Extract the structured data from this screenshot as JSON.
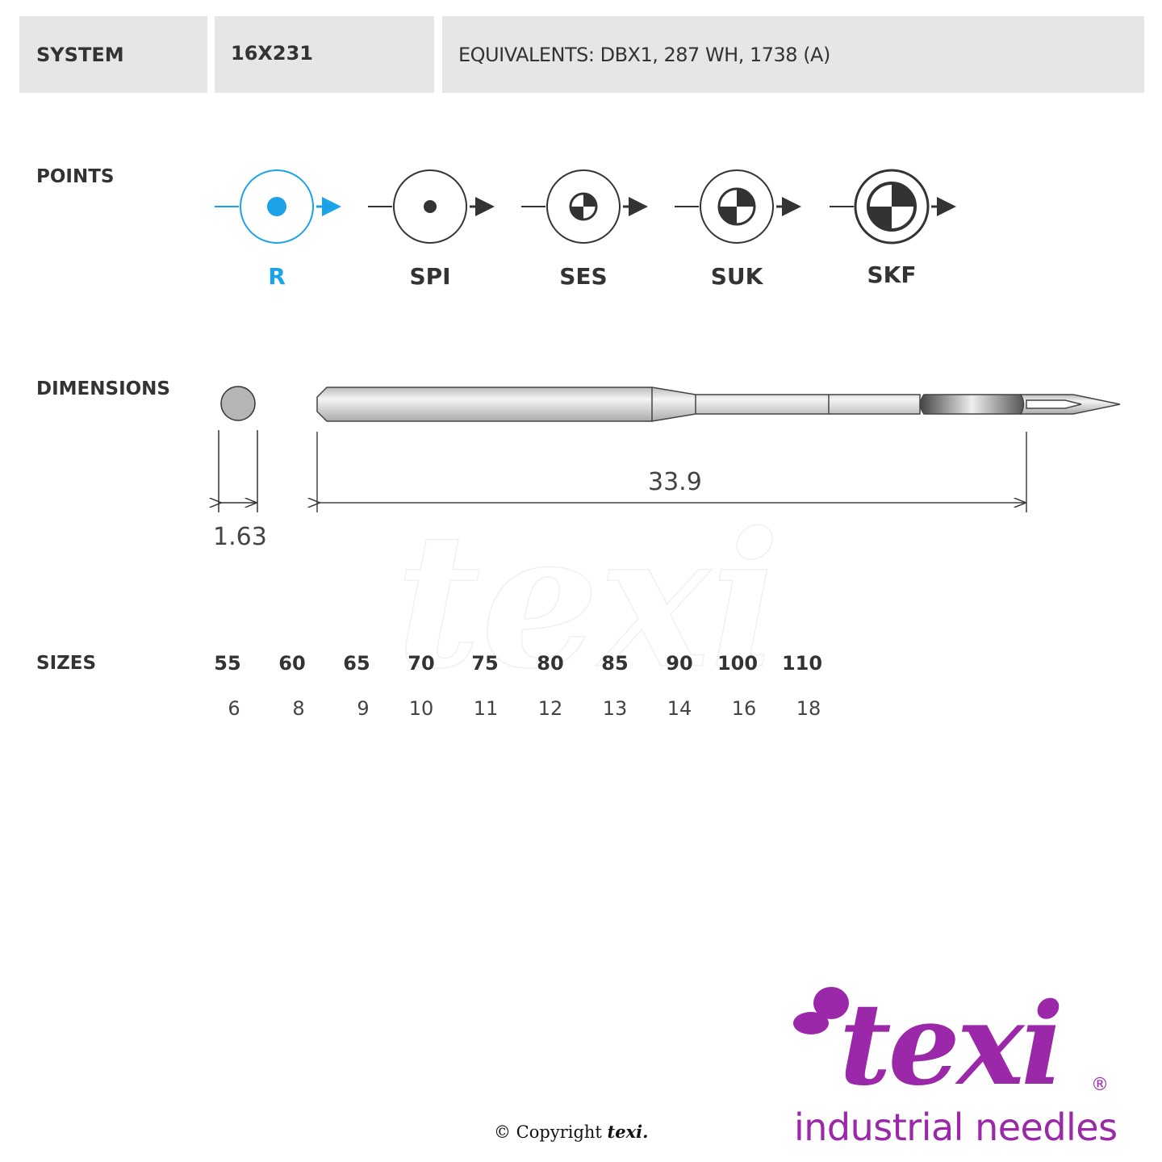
{
  "header": {
    "system_label": "SYSTEM",
    "system_value": "16X231",
    "equivalents": "EQUIVALENTS: DBX1, 287 WH, 1738 (A)"
  },
  "points": {
    "label": "POINTS",
    "items": [
      {
        "code": "R",
        "selected": true
      },
      {
        "code": "SPI"
      },
      {
        "code": "SES"
      },
      {
        "code": "SUK"
      },
      {
        "code": "SKF"
      }
    ],
    "accent_color": "#1aa3e8"
  },
  "dimensions": {
    "label": "DIMENSIONS",
    "diameter": "1.63",
    "length": "33.9"
  },
  "sizes": {
    "label": "SIZES",
    "metric": [
      "55",
      "60",
      "65",
      "70",
      "75",
      "80",
      "85",
      "90",
      "100",
      "110"
    ],
    "singer": [
      "6",
      "8",
      "9",
      "10",
      "11",
      "12",
      "13",
      "14",
      "16",
      "18"
    ]
  },
  "footer": {
    "copyright": "© Copyright",
    "copyright_brand": "texi.",
    "brand": "texi",
    "registered": "®",
    "tagline": "industrial needles",
    "brand_color": "#9b27a9"
  }
}
